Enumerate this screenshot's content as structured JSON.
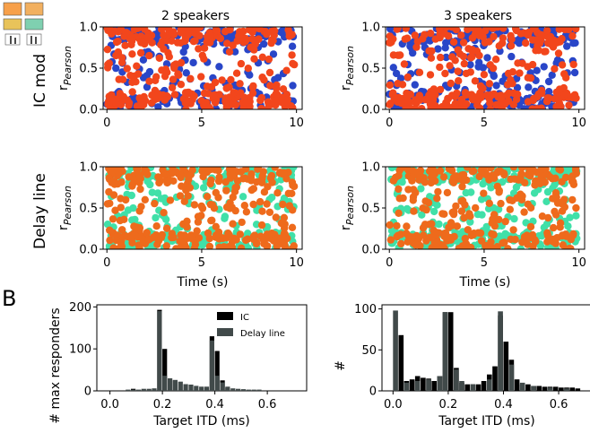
{
  "figure": {
    "panel_b_letter": "B",
    "inset_label": "IC mod"
  },
  "chart_data": [
    {
      "id": "ic-2",
      "type": "scatter",
      "title": "2 speakers",
      "row_label": "IC mod",
      "xlabel": "",
      "ylabel": "rPearson",
      "xlim": [
        -0.2,
        10.3
      ],
      "ylim": [
        0,
        1
      ],
      "xticks": [
        0,
        5,
        10
      ],
      "yticks": [
        0.0,
        0.5,
        1.0
      ],
      "series": [
        {
          "name": "speaker 1",
          "color": "#2946c8",
          "seed": 11,
          "n": 230
        },
        {
          "name": "speaker 2",
          "color": "#f2461c",
          "seed": 12,
          "n": 330
        }
      ]
    },
    {
      "id": "ic-3",
      "type": "scatter",
      "title": "3 speakers",
      "xlabel": "",
      "ylabel": "rPearson",
      "xlim": [
        -0.2,
        10.3
      ],
      "ylim": [
        0,
        1
      ],
      "xticks": [
        0,
        5,
        10
      ],
      "yticks": [
        0.0,
        0.5,
        1.0
      ],
      "series": [
        {
          "name": "speaker 1",
          "color": "#2946c8",
          "seed": 21,
          "n": 300
        },
        {
          "name": "speaker 2",
          "color": "#f2461c",
          "seed": 22,
          "n": 300
        }
      ]
    },
    {
      "id": "dl-2",
      "type": "scatter",
      "title": "",
      "row_label": "Delay line",
      "xlabel": "Time (s)",
      "ylabel": "rPearson",
      "xlim": [
        -0.2,
        10.3
      ],
      "ylim": [
        0,
        1
      ],
      "xticks": [
        0,
        5,
        10
      ],
      "yticks": [
        0.0,
        0.5,
        1.0
      ],
      "series": [
        {
          "name": "speaker 1",
          "color": "#40e0a8",
          "seed": 31,
          "n": 240
        },
        {
          "name": "speaker 2",
          "color": "#ee6a1c",
          "seed": 32,
          "n": 320
        }
      ]
    },
    {
      "id": "dl-3",
      "type": "scatter",
      "title": "",
      "xlabel": "Time (s)",
      "ylabel": "rPearson",
      "xlim": [
        -0.2,
        10.3
      ],
      "ylim": [
        0,
        1
      ],
      "xticks": [
        0,
        5,
        10
      ],
      "yticks": [
        0.0,
        0.5,
        1.0
      ],
      "series": [
        {
          "name": "speaker 1",
          "color": "#40e0a8",
          "seed": 41,
          "n": 300
        },
        {
          "name": "speaker 2",
          "color": "#ee6a1c",
          "seed": 42,
          "n": 300
        }
      ]
    },
    {
      "id": "hist-2",
      "type": "bar",
      "title": "",
      "xlabel": "Target ITD (ms)",
      "ylabel": "# max responders",
      "xlim": [
        -0.05,
        0.75
      ],
      "ylim": [
        0,
        205
      ],
      "xticks": [
        0.0,
        0.2,
        0.4,
        0.6
      ],
      "xtick_labels": [
        "0.0",
        "0.2",
        "0.4",
        "0.6"
      ],
      "yticks": [
        0,
        100,
        200
      ],
      "bin_width": 0.02,
      "legend": {
        "position": "top-right",
        "entries": [
          "IC",
          "Delay line"
        ]
      },
      "series": [
        {
          "name": "IC",
          "color": "#000000",
          "bins": [
            0.08,
            0.18,
            0.2,
            0.22,
            0.38,
            0.4,
            0.42,
            0.44
          ],
          "values": [
            5,
            193,
            100,
            25,
            130,
            95,
            25,
            8
          ]
        },
        {
          "name": "Delay line",
          "color": "#414a4a",
          "bins": [
            0.06,
            0.08,
            0.1,
            0.12,
            0.14,
            0.16,
            0.18,
            0.2,
            0.22,
            0.24,
            0.26,
            0.28,
            0.3,
            0.32,
            0.34,
            0.36,
            0.38,
            0.4,
            0.42,
            0.44,
            0.46,
            0.48,
            0.5,
            0.52,
            0.54,
            0.56
          ],
          "values": [
            3,
            3,
            3,
            5,
            5,
            6,
            190,
            36,
            30,
            26,
            22,
            16,
            15,
            12,
            10,
            10,
            120,
            36,
            20,
            10,
            6,
            5,
            4,
            3,
            3,
            3
          ]
        }
      ]
    },
    {
      "id": "hist-3",
      "type": "bar",
      "title": "",
      "xlabel": "Target ITD (ms)",
      "ylabel": "#",
      "xlim": [
        -0.04,
        0.72
      ],
      "ylim": [
        0,
        105
      ],
      "xticks": [
        0.0,
        0.2,
        0.4,
        0.6
      ],
      "xtick_labels": [
        "0.0",
        "0.2",
        "0.4",
        "0.6"
      ],
      "yticks": [
        0,
        50,
        100
      ],
      "bin_width": 0.02,
      "series": [
        {
          "name": "IC",
          "color": "#000000",
          "bins": [
            0.02,
            0.04,
            0.06,
            0.08,
            0.1,
            0.12,
            0.14,
            0.16,
            0.18,
            0.2,
            0.22,
            0.24,
            0.26,
            0.28,
            0.3,
            0.32,
            0.34,
            0.36,
            0.38,
            0.4,
            0.42,
            0.44,
            0.46,
            0.48,
            0.5,
            0.52,
            0.54,
            0.56,
            0.58,
            0.6,
            0.62,
            0.64,
            0.66
          ],
          "values": [
            68,
            12,
            14,
            18,
            16,
            15,
            12,
            18,
            96,
            96,
            28,
            10,
            8,
            8,
            8,
            12,
            20,
            30,
            92,
            60,
            38,
            14,
            8,
            8,
            6,
            6,
            5,
            5,
            5,
            4,
            4,
            4,
            3
          ]
        },
        {
          "name": "Delay line",
          "color": "#414a4a",
          "bins": [
            0.0,
            0.04,
            0.08,
            0.12,
            0.16,
            0.18,
            0.22,
            0.24,
            0.28,
            0.34,
            0.38,
            0.42,
            0.46,
            0.5,
            0.56,
            0.62
          ],
          "values": [
            98,
            10,
            12,
            14,
            18,
            96,
            26,
            12,
            8,
            14,
            97,
            32,
            10,
            6,
            4,
            3
          ]
        }
      ]
    }
  ]
}
